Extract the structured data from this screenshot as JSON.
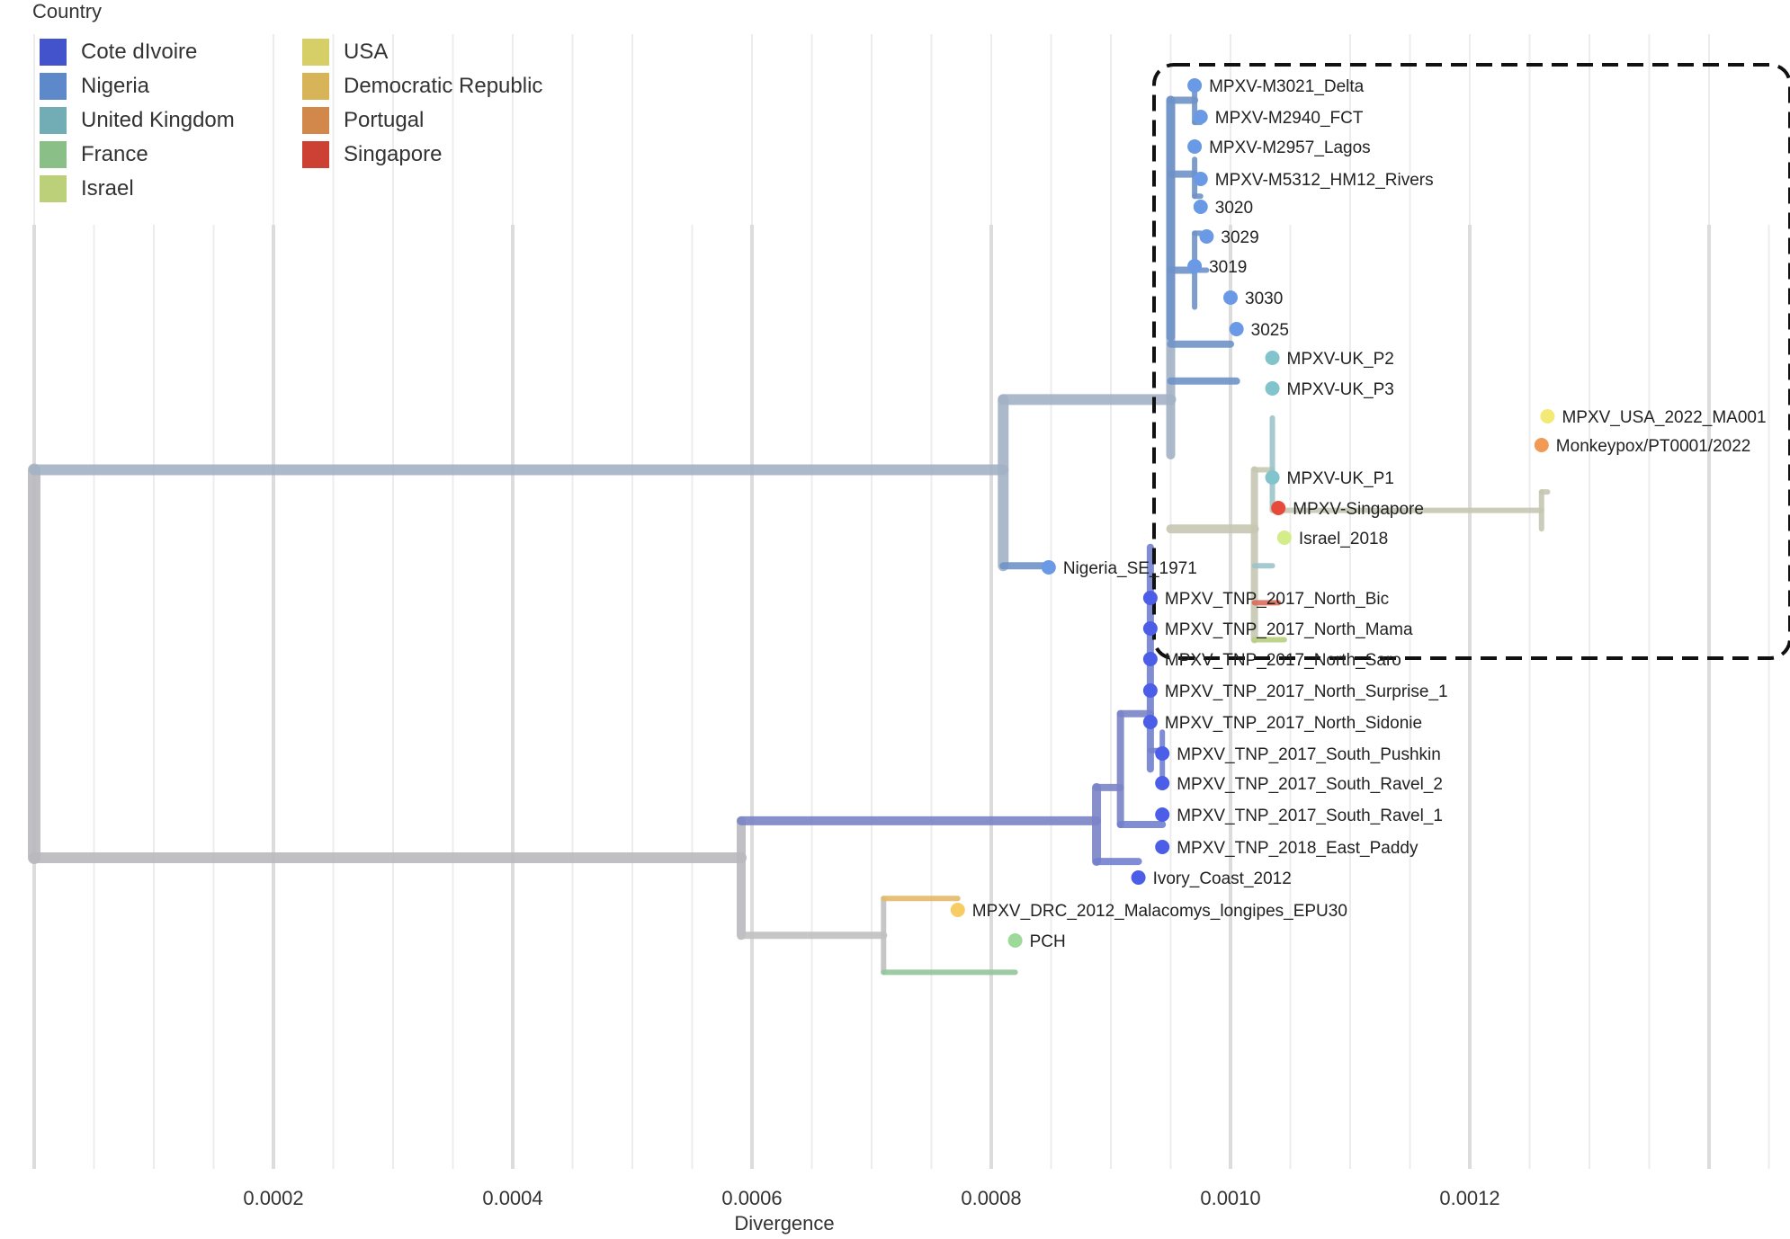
{
  "legend": {
    "title": "Country",
    "items": [
      {
        "label": "Cote dIvoire",
        "color": "#4c5ee8"
      },
      {
        "label": "Nigeria",
        "color": "#6a9ae6"
      },
      {
        "label": "United Kingdom",
        "color": "#82c4cc"
      },
      {
        "label": "France",
        "color": "#9dda99"
      },
      {
        "label": "Israel",
        "color": "#d5ec8a"
      },
      {
        "label": "USA",
        "color": "#f3ea75"
      },
      {
        "label": "Democratic Republic",
        "color": "#f6cc64"
      },
      {
        "label": "Portugal",
        "color": "#f09a55"
      },
      {
        "label": "Singapore",
        "color": "#e84a3a"
      }
    ]
  },
  "axis": {
    "label": "Divergence",
    "ticks": [
      "0.0002",
      "0.0004",
      "0.0006",
      "0.0008",
      "0.0010",
      "0.0012"
    ]
  },
  "tips": [
    {
      "name": "MPXV-M3021_Delta",
      "color": "#6a9ae6",
      "divergence": 0.00097
    },
    {
      "name": "MPXV-M2940_FCT",
      "color": "#6a9ae6",
      "divergence": 0.000975
    },
    {
      "name": "MPXV-M2957_Lagos",
      "color": "#6a9ae6",
      "divergence": 0.00097
    },
    {
      "name": "MPXV-M5312_HM12_Rivers",
      "color": "#6a9ae6",
      "divergence": 0.000975
    },
    {
      "name": "3020",
      "color": "#6a9ae6",
      "divergence": 0.000975
    },
    {
      "name": "3029",
      "color": "#6a9ae6",
      "divergence": 0.00098
    },
    {
      "name": "3019",
      "color": "#6a9ae6",
      "divergence": 0.00097
    },
    {
      "name": "3030",
      "color": "#6a9ae6",
      "divergence": 0.001
    },
    {
      "name": "3025",
      "color": "#6a9ae6",
      "divergence": 0.001005
    },
    {
      "name": "MPXV-UK_P2",
      "color": "#82c4cc",
      "divergence": 0.001035
    },
    {
      "name": "MPXV-UK_P3",
      "color": "#82c4cc",
      "divergence": 0.001035
    },
    {
      "name": "MPXV_USA_2022_MA001",
      "color": "#f3ea75",
      "divergence": 0.001265
    },
    {
      "name": "Monkeypox/PT0001/2022",
      "color": "#f09a55",
      "divergence": 0.00126
    },
    {
      "name": "MPXV-UK_P1",
      "color": "#82c4cc",
      "divergence": 0.001035
    },
    {
      "name": "MPXV-Singapore",
      "color": "#e84a3a",
      "divergence": 0.00104
    },
    {
      "name": "Israel_2018",
      "color": "#d5ec8a",
      "divergence": 0.001045
    },
    {
      "name": "Nigeria_SE_1971",
      "color": "#6a9ae6",
      "divergence": 0.000848
    },
    {
      "name": "MPXV_TNP_2017_North_Bic",
      "color": "#4c5ee8",
      "divergence": 0.000933
    },
    {
      "name": "MPXV_TNP_2017_North_Mama",
      "color": "#4c5ee8",
      "divergence": 0.000933
    },
    {
      "name": "MPXV_TNP_2017_North_Saro",
      "color": "#4c5ee8",
      "divergence": 0.000933
    },
    {
      "name": "MPXV_TNP_2017_North_Surprise_1",
      "color": "#4c5ee8",
      "divergence": 0.000933
    },
    {
      "name": "MPXV_TNP_2017_North_Sidonie",
      "color": "#4c5ee8",
      "divergence": 0.000933
    },
    {
      "name": "MPXV_TNP_2017_South_Pushkin",
      "color": "#4c5ee8",
      "divergence": 0.000943
    },
    {
      "name": "MPXV_TNP_2017_South_Ravel_2",
      "color": "#4c5ee8",
      "divergence": 0.000943
    },
    {
      "name": "MPXV_TNP_2017_South_Ravel_1",
      "color": "#4c5ee8",
      "divergence": 0.000943
    },
    {
      "name": "MPXV_TNP_2018_East_Paddy",
      "color": "#4c5ee8",
      "divergence": 0.000943
    },
    {
      "name": "Ivory_Coast_2012",
      "color": "#4c5ee8",
      "divergence": 0.000923
    },
    {
      "name": "MPXV_DRC_2012_Malacomys_longipes_EPU30",
      "color": "#f6cc64",
      "divergence": 0.000772
    },
    {
      "name": "PCH",
      "color": "#9dda99",
      "divergence": 0.00082
    }
  ]
}
